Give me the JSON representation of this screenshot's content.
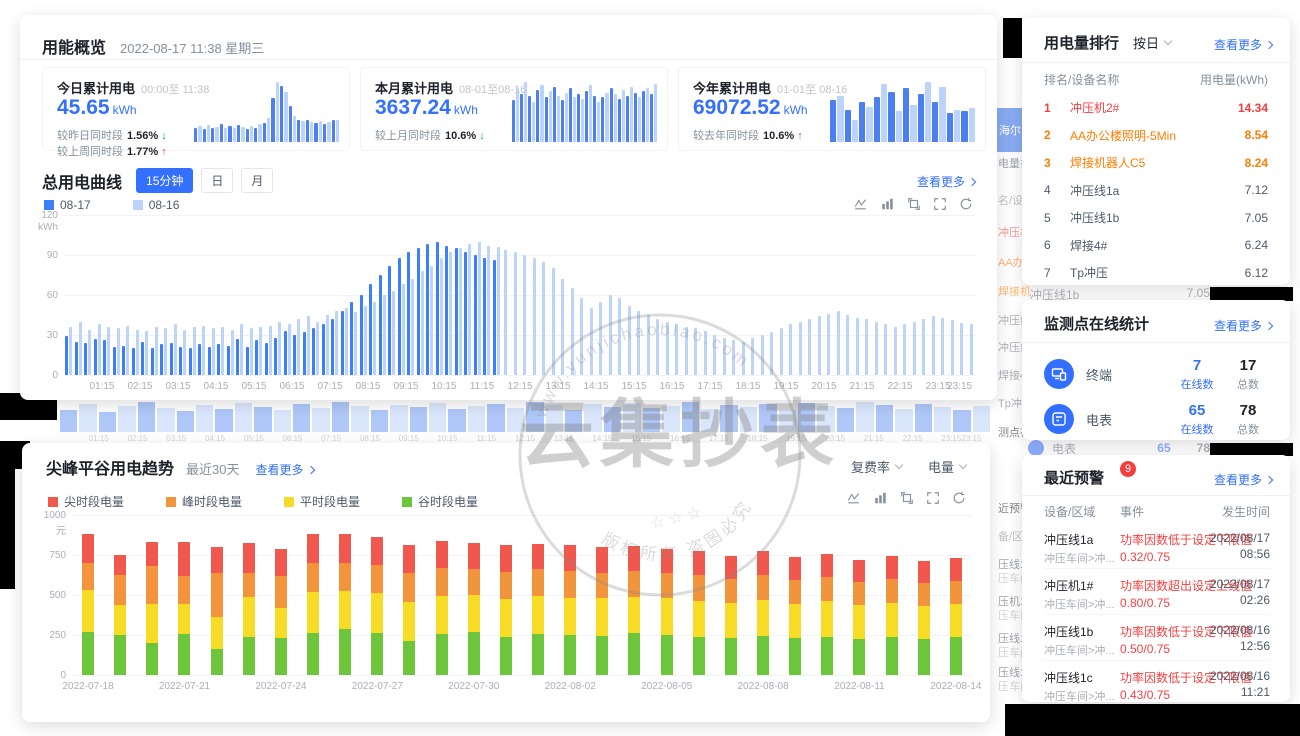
{
  "overview_panel": {
    "title": "用能概览",
    "datetime": "2022-08-17 11:38 星期三",
    "cards": [
      {
        "title": "今日累计用电",
        "range": "00:00至 11:38",
        "value": "45.65",
        "unit": "kWh",
        "compares": [
          {
            "label": "较昨日同时段",
            "value": "1.56%",
            "direction": "down"
          },
          {
            "label": "较上周同时段",
            "value": "1.77%",
            "direction": "up"
          }
        ],
        "spark": [
          18,
          20,
          16,
          21,
          17,
          19,
          22,
          18,
          20,
          17,
          21,
          19,
          16,
          20,
          18,
          22,
          24,
          30,
          55,
          75,
          70,
          62,
          45,
          32,
          28,
          26,
          27,
          25,
          24,
          26,
          23,
          25,
          27,
          28
        ]
      },
      {
        "title": "本月累计用电",
        "range": "08-01至08-16",
        "value": "3637.24",
        "unit": "kWh",
        "compares": [
          {
            "label": "较上月同时段",
            "value": "10.6%",
            "direction": "down"
          }
        ],
        "spark": [
          55,
          70,
          62,
          78,
          60,
          52,
          68,
          74,
          58,
          66,
          72,
          60,
          54,
          64,
          70,
          58,
          62,
          56,
          66,
          74,
          60,
          52,
          58,
          64,
          70,
          62,
          56,
          68,
          60,
          72,
          64,
          58,
          66,
          70,
          62,
          75
        ]
      },
      {
        "title": "今年累计用电",
        "range": "01-01至 08-16",
        "value": "69072.52",
        "unit": "kWh",
        "compares": [
          {
            "label": "较去年同时段",
            "value": "10.6%",
            "direction": "up"
          }
        ],
        "spark": [
          55,
          60,
          42,
          28,
          52,
          45,
          58,
          75,
          65,
          40,
          70,
          48,
          62,
          78,
          52,
          72,
          38,
          42,
          40,
          44
        ]
      }
    ]
  },
  "total_curve": {
    "title": "总用电曲线",
    "tabs": [
      {
        "label": "15分钟",
        "active": true
      },
      {
        "label": "日",
        "active": false
      },
      {
        "label": "月",
        "active": false
      }
    ],
    "more_label": "查看更多",
    "toolbar_icons": [
      "line-chart-icon",
      "bar-chart-icon",
      "zoom-out-icon",
      "frame-icon",
      "refresh-icon"
    ],
    "chart_data": {
      "type": "bar",
      "title": "总用电曲线",
      "ylabel_unit": "kWh",
      "y_ticks": [
        0,
        30,
        60,
        90,
        120
      ],
      "ylim": [
        0,
        120
      ],
      "x_ticks": [
        "01:15",
        "02:15",
        "03:15",
        "04:15",
        "05:15",
        "06:15",
        "07:15",
        "08:15",
        "09:15",
        "10:15",
        "11:15",
        "12:15",
        "13:15",
        "14:15",
        "15:15",
        "16:15",
        "17:15",
        "18:15",
        "19:15",
        "20:15",
        "21:15",
        "22:15",
        "23:15",
        "23:15"
      ],
      "legend_position": "top-left",
      "grid": true,
      "series": [
        {
          "name": "08-17",
          "color": "#3d7efb",
          "values": [
            29,
            25,
            24,
            27,
            26,
            21,
            22,
            20,
            25,
            20,
            23,
            24,
            21,
            20,
            23,
            21,
            23,
            22,
            27,
            21,
            26,
            24,
            28,
            33,
            30,
            32,
            35,
            38,
            42,
            48,
            55,
            60,
            68,
            75,
            82,
            88,
            92,
            95,
            98,
            100,
            97,
            95,
            92,
            90,
            88,
            86
          ]
        },
        {
          "name": "08-16",
          "color": "#bcd3fb",
          "values": [
            36,
            40,
            34,
            38,
            36,
            35,
            37,
            34,
            33,
            36,
            35,
            38,
            34,
            36,
            37,
            35,
            36,
            34,
            38,
            35,
            36,
            37,
            40,
            38,
            42,
            44,
            40,
            45,
            48,
            50,
            47,
            52,
            55,
            60,
            63,
            68,
            72,
            78,
            82,
            88,
            92,
            95,
            98,
            100,
            97,
            96,
            94,
            92,
            90,
            88,
            85,
            80,
            72,
            65,
            58,
            50,
            55,
            60,
            58,
            52,
            48,
            45,
            42,
            40,
            38,
            36,
            35,
            33,
            30,
            28,
            26,
            25,
            28,
            30,
            32,
            35,
            38,
            40,
            42,
            44,
            46,
            48,
            45,
            43,
            42,
            40,
            38,
            36,
            38,
            40,
            42,
            44,
            43,
            41,
            39,
            38
          ]
        }
      ]
    }
  },
  "trend_panel": {
    "title": "尖峰平谷用电趋势",
    "subtitle": "最近30天",
    "more_label": "查看更多",
    "selects": [
      {
        "label": "复费率"
      },
      {
        "label": "电量"
      }
    ],
    "toolbar_icons": [
      "line-chart-icon",
      "bar-chart-icon",
      "zoom-out-icon",
      "frame-icon",
      "refresh-icon"
    ],
    "chart_data": {
      "type": "bar",
      "stacked": true,
      "title": "尖峰平谷用电趋势",
      "ylabel_unit": "元",
      "y_ticks": [
        0,
        250,
        500,
        750,
        1000
      ],
      "ylim": [
        0,
        1000
      ],
      "categories": [
        "2022-07-18",
        "2022-07-19",
        "2022-07-20",
        "2022-07-21",
        "2022-07-22",
        "2022-07-23",
        "2022-07-24",
        "2022-07-25",
        "2022-07-26",
        "2022-07-27",
        "2022-07-28",
        "2022-07-29",
        "2022-07-30",
        "2022-07-31",
        "2022-08-01",
        "2022-08-02",
        "2022-08-03",
        "2022-08-04",
        "2022-08-05",
        "2022-08-06",
        "2022-08-07",
        "2022-08-08",
        "2022-08-09",
        "2022-08-10",
        "2022-08-11",
        "2022-08-12",
        "2022-08-13",
        "2022-08-14"
      ],
      "x_tick_labels": [
        "2022-07-18",
        "2022-07-21",
        "2022-07-24",
        "2022-07-27",
        "2022-07-30",
        "2022-08-02",
        "2022-08-05",
        "2022-08-08",
        "2022-08-11",
        "2022-08-14"
      ],
      "x_tick_every": 3,
      "grid": true,
      "series": [
        {
          "name": "谷时段电量",
          "color": "#6dc53c",
          "values": [
            270,
            250,
            200,
            255,
            160,
            235,
            230,
            260,
            290,
            265,
            210,
            255,
            270,
            240,
            255,
            250,
            245,
            260,
            250,
            240,
            230,
            245,
            230,
            240,
            225,
            235,
            225,
            235
          ]
        },
        {
          "name": "平时段电量",
          "color": "#f6dc25",
          "values": [
            260,
            185,
            245,
            190,
            200,
            255,
            190,
            260,
            235,
            250,
            245,
            240,
            230,
            235,
            240,
            230,
            235,
            225,
            230,
            225,
            220,
            225,
            215,
            220,
            210,
            215,
            205,
            210
          ]
        },
        {
          "name": "峰时段电量",
          "color": "#f2943c",
          "values": [
            170,
            190,
            235,
            175,
            280,
            145,
            200,
            180,
            175,
            170,
            185,
            175,
            165,
            170,
            165,
            170,
            160,
            165,
            155,
            160,
            150,
            155,
            150,
            150,
            145,
            150,
            145,
            145
          ]
        },
        {
          "name": "尖时段电量",
          "color": "#f0584d",
          "values": [
            180,
            125,
            150,
            210,
            160,
            190,
            170,
            180,
            180,
            175,
            170,
            165,
            160,
            170,
            160,
            160,
            160,
            155,
            155,
            150,
            145,
            150,
            145,
            145,
            140,
            145,
            140,
            140
          ]
        }
      ],
      "legend_order": [
        "尖时段电量",
        "峰时段电量",
        "平时段电量",
        "谷时段电量"
      ],
      "legend_colors": [
        "#f0584d",
        "#f2943c",
        "#f6dc25",
        "#6dc53c"
      ]
    }
  },
  "ranking_panel": {
    "title": "用电量排行",
    "filter_label": "按日",
    "more_label": "查看更多",
    "columns": [
      "排名/设备名称",
      "用电量(kWh)"
    ],
    "rows": [
      {
        "rank": "1",
        "name": "冲压机2#",
        "value": "14.34",
        "color": "#f53f3f"
      },
      {
        "rank": "2",
        "name": "AA办公楼照明-5Min",
        "value": "8.54",
        "color": "#ff7d00"
      },
      {
        "rank": "3",
        "name": "焊接机器人C5",
        "value": "8.24",
        "color": "#ff7d00"
      },
      {
        "rank": "4",
        "name": "冲压线1a",
        "value": "7.12",
        "color": "#4e5969"
      },
      {
        "rank": "5",
        "name": "冲压线1b",
        "value": "7.05",
        "color": "#4e5969"
      },
      {
        "rank": "6",
        "name": "焊接4#",
        "value": "6.24",
        "color": "#4e5969"
      },
      {
        "rank": "7",
        "name": "Tp冲压",
        "value": "6.12",
        "color": "#4e5969"
      }
    ]
  },
  "online_panel": {
    "title": "监测点在线统计",
    "more_label": "查看更多",
    "rows": [
      {
        "icon": "terminal-icon",
        "label": "终端",
        "online": "7",
        "online_label": "在线数",
        "total": "17",
        "total_label": "总数"
      },
      {
        "icon": "meter-icon",
        "label": "电表",
        "online": "65",
        "online_label": "在线数",
        "total": "78",
        "total_label": "总数"
      }
    ]
  },
  "alerts_panel": {
    "title": "最近预警",
    "badge": "9",
    "more_label": "查看更多",
    "columns": [
      "设备/区域",
      "事件",
      "发生时间"
    ],
    "rows": [
      {
        "device": "冲压线1a",
        "area": "冲压车间>冲...",
        "event": "功率因数低于设定下限值",
        "detail": "0.32/0.75",
        "date": "2022/08/17",
        "time": "08:56"
      },
      {
        "device": "冲压机1#",
        "area": "冲压车间>冲...",
        "event": "功率因数超出设定上线值",
        "detail": "0.80/0.75",
        "date": "2022/08/17",
        "time": "02:26"
      },
      {
        "device": "冲压线1b",
        "area": "冲压车间>冲...",
        "event": "功率因数低于设定下限值",
        "detail": "0.50/0.75",
        "date": "2022/08/16",
        "time": "12:56"
      },
      {
        "device": "冲压线1c",
        "area": "冲压车间>冲...",
        "event": "功率因数低于设定下限值",
        "detail": "0.43/0.75",
        "date": "2022/08/16",
        "time": "11:21"
      }
    ]
  },
  "background_fragments": {
    "left_strip_values": [
      22,
      28,
      20,
      26,
      30,
      24,
      21,
      27,
      23,
      29,
      25,
      22,
      28,
      24,
      30,
      26,
      22,
      27,
      25,
      29,
      23,
      26,
      28,
      24,
      30,
      27,
      22,
      28,
      25,
      29,
      24,
      26,
      30,
      23,
      27,
      25,
      28,
      22,
      29,
      26,
      24,
      30,
      27,
      23,
      28,
      25,
      22,
      26
    ],
    "left_strip_labels": [
      "01:15",
      "02:15",
      "03:15",
      "04:15",
      "05:15",
      "06:15",
      "07:15",
      "08:15",
      "09:15",
      "10:15",
      "11:15",
      "12:15",
      "13:15",
      "14:15",
      "15:15",
      "16:15",
      "17:15",
      "18:15",
      "19:15",
      "20:15",
      "21:15",
      "22:15",
      "23:15",
      "23:15"
    ],
    "right_strip": [
      {
        "text": "海尔",
        "color": "#ffffff",
        "y": 108,
        "blue_bg": true
      },
      {
        "text": "电量排",
        "color": "#4e5969",
        "y": 155
      },
      {
        "text": "名/设备",
        "color": "#86909c",
        "y": 192
      },
      {
        "text": "冲压机",
        "color": "#f53f3f",
        "y": 224
      },
      {
        "text": "AA办",
        "color": "#ff7d00",
        "y": 254
      },
      {
        "text": "焊接机",
        "color": "#ff7d00",
        "y": 283
      },
      {
        "text": "冲压线",
        "color": "#6b7280",
        "y": 312
      },
      {
        "text": "冲压线1b",
        "color": "#6b7280",
        "y": 339
      },
      {
        "text": "焊接4#",
        "color": "#6b7280",
        "y": 367
      },
      {
        "text": "Tp冲压",
        "color": "#6b7280",
        "y": 395
      },
      {
        "text": "测点在",
        "color": "#1d2129",
        "y": 424
      },
      {
        "text": "近预警",
        "color": "#1d2129",
        "y": 500
      },
      {
        "text": "备/区域",
        "color": "#86909c",
        "y": 528
      },
      {
        "text": "压线1a",
        "color": "#4e5969",
        "y": 556
      },
      {
        "text": "压车间>冲",
        "color": "#a9aeb8",
        "y": 570
      },
      {
        "text": "压机1#",
        "color": "#4e5969",
        "y": 593
      },
      {
        "text": "压车间>冲",
        "color": "#a9aeb8",
        "y": 607
      },
      {
        "text": "压线1b",
        "color": "#4e5969",
        "y": 630
      },
      {
        "text": "压车间>冲",
        "color": "#a9aeb8",
        "y": 644
      },
      {
        "text": "压线1c",
        "color": "#4e5969",
        "y": 664
      },
      {
        "text": "压车间>冲",
        "color": "#a9aeb8",
        "y": 678
      }
    ],
    "between_rank_online": {
      "name": "冲压线1b",
      "value": "7.05"
    },
    "between_online_alert": {
      "label": "电表",
      "online": "65",
      "total": "78"
    }
  },
  "watermark": {
    "top_arc": "www.yunjichaobiao.com",
    "center": "云集抄表",
    "bottom_arc": "版权所有 盗图必究",
    "stars": "☆ ☆ ☆"
  }
}
